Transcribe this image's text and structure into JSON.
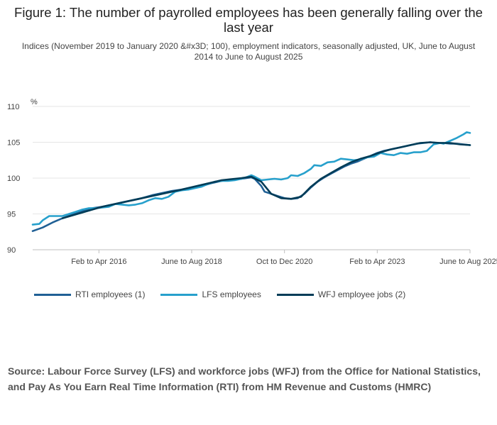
{
  "header": {
    "title": "Figure 1: The number of payrolled employees has been generally falling over the last year",
    "subtitle": "Indices (November 2019 to January 2020 &#x3D; 100), employment indicators, seasonally adjusted, UK, June to August 2014 to June to August 2025"
  },
  "source": {
    "text": "Source: Labour Force Survey (LFS) and workforce jobs (WFJ) from the Office for National Statistics, and Pay As You Earn Real Time Information (RTI) from HM Revenue and Customs (HMRC)"
  },
  "legend": {
    "items": [
      {
        "label": "RTI employees (1)",
        "color": "#206095"
      },
      {
        "label": "LFS employees",
        "color": "#27a0cc"
      },
      {
        "label": "WFJ employee jobs (2)",
        "color": "#003c57"
      }
    ]
  },
  "chart_data": {
    "type": "line",
    "title": "Figure 1: The number of payrolled employees has been generally falling over the last year",
    "xlabel": "",
    "ylabel": "%",
    "ylim": [
      90,
      110
    ],
    "yticks": [
      90,
      95,
      100,
      105,
      110
    ],
    "xlim": [
      0,
      132
    ],
    "xticks": [
      {
        "x": 20,
        "label": "Feb to Apr 2016"
      },
      {
        "x": 48,
        "label": "June to Aug 2018"
      },
      {
        "x": 76,
        "label": "Oct to Dec 2020"
      },
      {
        "x": 104,
        "label": "Feb to Apr 2023"
      },
      {
        "x": 132,
        "label": "June to Aug 2025"
      }
    ],
    "x_note": "x = months since June to August 2014",
    "grid": true,
    "series": [
      {
        "name": "RTI employees (1)",
        "color": "#206095",
        "points": [
          [
            0,
            92.6
          ],
          [
            3,
            93.1
          ],
          [
            6,
            93.8
          ],
          [
            9,
            94.4
          ],
          [
            12,
            94.9
          ],
          [
            15,
            95.4
          ],
          [
            18,
            95.8
          ],
          [
            21,
            96.0
          ],
          [
            24,
            96.3
          ],
          [
            27,
            96.6
          ],
          [
            30,
            96.9
          ],
          [
            33,
            97.2
          ],
          [
            36,
            97.6
          ],
          [
            39,
            97.9
          ],
          [
            42,
            98.2
          ],
          [
            45,
            98.4
          ],
          [
            48,
            98.7
          ],
          [
            51,
            98.9
          ],
          [
            54,
            99.3
          ],
          [
            57,
            99.6
          ],
          [
            60,
            99.8
          ],
          [
            63,
            99.9
          ],
          [
            66,
            100.1
          ],
          [
            67,
            99.9
          ],
          [
            69,
            98.9
          ],
          [
            70,
            98.1
          ],
          [
            72,
            97.8
          ],
          [
            74,
            97.5
          ],
          [
            76,
            97.2
          ],
          [
            78,
            97.1
          ],
          [
            80,
            97.2
          ],
          [
            82,
            97.8
          ],
          [
            84,
            98.7
          ],
          [
            86,
            99.5
          ],
          [
            88,
            100.1
          ],
          [
            90,
            100.6
          ],
          [
            92,
            101.1
          ],
          [
            94,
            101.6
          ],
          [
            96,
            102.0
          ],
          [
            98,
            102.3
          ],
          [
            100,
            102.7
          ],
          [
            102,
            103.1
          ],
          [
            104,
            103.5
          ],
          [
            106,
            103.8
          ],
          [
            108,
            104.0
          ],
          [
            110,
            104.2
          ],
          [
            112,
            104.4
          ],
          [
            114,
            104.6
          ],
          [
            116,
            104.8
          ],
          [
            118,
            104.9
          ],
          [
            120,
            105.0
          ],
          [
            122,
            104.9
          ],
          [
            124,
            104.9
          ],
          [
            126,
            104.8
          ],
          [
            128,
            104.8
          ],
          [
            130,
            104.7
          ],
          [
            132,
            104.6
          ]
        ]
      },
      {
        "name": "LFS employees",
        "color": "#27a0cc",
        "points": [
          [
            0,
            93.5
          ],
          [
            2,
            93.6
          ],
          [
            3,
            94.1
          ],
          [
            5,
            94.7
          ],
          [
            7,
            94.7
          ],
          [
            9,
            94.7
          ],
          [
            11,
            95.0
          ],
          [
            13,
            95.3
          ],
          [
            15,
            95.6
          ],
          [
            17,
            95.8
          ],
          [
            19,
            95.8
          ],
          [
            21,
            95.9
          ],
          [
            23,
            96.0
          ],
          [
            25,
            96.4
          ],
          [
            27,
            96.3
          ],
          [
            29,
            96.2
          ],
          [
            31,
            96.3
          ],
          [
            33,
            96.5
          ],
          [
            35,
            96.9
          ],
          [
            37,
            97.2
          ],
          [
            39,
            97.1
          ],
          [
            41,
            97.4
          ],
          [
            43,
            98.1
          ],
          [
            45,
            98.3
          ],
          [
            47,
            98.4
          ],
          [
            49,
            98.6
          ],
          [
            51,
            98.8
          ],
          [
            53,
            99.2
          ],
          [
            55,
            99.5
          ],
          [
            57,
            99.6
          ],
          [
            59,
            99.6
          ],
          [
            61,
            99.7
          ],
          [
            63,
            99.9
          ],
          [
            65,
            100.2
          ],
          [
            66,
            100.4
          ],
          [
            67,
            100.2
          ],
          [
            69,
            99.7
          ],
          [
            71,
            99.8
          ],
          [
            73,
            99.9
          ],
          [
            75,
            99.8
          ],
          [
            77,
            100.0
          ],
          [
            78,
            100.4
          ],
          [
            80,
            100.3
          ],
          [
            82,
            100.7
          ],
          [
            84,
            101.3
          ],
          [
            85,
            101.8
          ],
          [
            87,
            101.7
          ],
          [
            89,
            102.2
          ],
          [
            91,
            102.3
          ],
          [
            93,
            102.7
          ],
          [
            95,
            102.6
          ],
          [
            97,
            102.5
          ],
          [
            99,
            102.6
          ],
          [
            101,
            102.9
          ],
          [
            103,
            103.0
          ],
          [
            105,
            103.5
          ],
          [
            107,
            103.3
          ],
          [
            109,
            103.2
          ],
          [
            111,
            103.5
          ],
          [
            113,
            103.4
          ],
          [
            115,
            103.6
          ],
          [
            117,
            103.6
          ],
          [
            119,
            103.8
          ],
          [
            121,
            104.7
          ],
          [
            123,
            104.9
          ],
          [
            124,
            104.8
          ],
          [
            126,
            105.2
          ],
          [
            128,
            105.6
          ],
          [
            130,
            106.1
          ],
          [
            131,
            106.4
          ],
          [
            132,
            106.3
          ]
        ]
      },
      {
        "name": "WFJ employee jobs (2)",
        "color": "#003c57",
        "points": [
          [
            9,
            94.4
          ],
          [
            21,
            96.0
          ],
          [
            33,
            97.2
          ],
          [
            45,
            98.4
          ],
          [
            57,
            99.7
          ],
          [
            63,
            100.0
          ],
          [
            66,
            100.2
          ],
          [
            69,
            99.5
          ],
          [
            72,
            97.8
          ],
          [
            75,
            97.2
          ],
          [
            78,
            97.1
          ],
          [
            81,
            97.4
          ],
          [
            84,
            98.8
          ],
          [
            87,
            99.9
          ],
          [
            90,
            100.7
          ],
          [
            93,
            101.5
          ],
          [
            96,
            102.2
          ],
          [
            99,
            102.7
          ],
          [
            102,
            103.1
          ],
          [
            105,
            103.6
          ],
          [
            108,
            104.0
          ],
          [
            111,
            104.3
          ],
          [
            114,
            104.6
          ],
          [
            117,
            104.9
          ],
          [
            120,
            105.0
          ],
          [
            123,
            104.9
          ],
          [
            126,
            104.9
          ],
          [
            129,
            104.7
          ],
          [
            132,
            104.6
          ]
        ]
      }
    ]
  }
}
